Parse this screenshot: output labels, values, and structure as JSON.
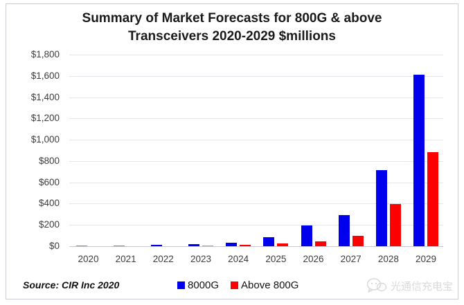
{
  "title": {
    "line1": "Summary of Market Forecasts for 800G & above",
    "line2": "Transceivers 2020-2029 $millions"
  },
  "source": "Source: CIR Inc 2020",
  "legend": [
    {
      "label": "8000G",
      "color": "#0000EE"
    },
    {
      "label": "Above 800G",
      "color": "#FF0000"
    }
  ],
  "watermark": {
    "text": "光通信充电宝",
    "icon": "wechat-chat-bubbles-icon"
  },
  "colors": {
    "blue_series": "#0000EE",
    "red_series": "#FF0000"
  },
  "chart_data": {
    "type": "bar",
    "title": "Summary of Market Forecasts for 800G & above Transceivers 2020-2029 $millions",
    "xlabel": "",
    "ylabel": "$millions",
    "categories": [
      "2020",
      "2021",
      "2022",
      "2023",
      "2024",
      "2025",
      "2026",
      "2027",
      "2028",
      "2029"
    ],
    "series": [
      {
        "name": "8000G",
        "color": "#0000EE",
        "values": [
          2,
          4,
          10,
          18,
          34,
          85,
          195,
          290,
          715,
          1610
        ]
      },
      {
        "name": "Above 800G",
        "color": "#FF0000",
        "values": [
          0,
          0,
          0,
          8,
          13,
          25,
          45,
          100,
          395,
          885
        ]
      }
    ],
    "ylim": [
      0,
      1800
    ],
    "ytick_step": 200,
    "ytick_labels_top_to_bottom": [
      "$1,800",
      "$1,600",
      "$1,400",
      "$1,200",
      "$1,000",
      "$800",
      "$600",
      "$400",
      "$200",
      "$0"
    ],
    "grid": "horizontal",
    "legend_position": "bottom"
  }
}
